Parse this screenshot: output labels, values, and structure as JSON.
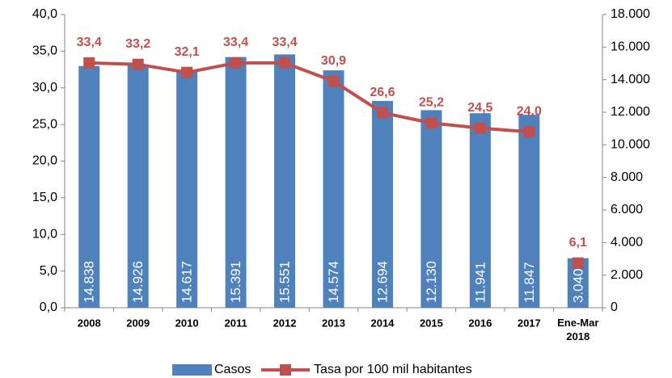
{
  "chart_data": {
    "type": "bar",
    "categories": [
      "2008",
      "2009",
      "2010",
      "2011",
      "2012",
      "2013",
      "2014",
      "2015",
      "2016",
      "2017",
      "Ene-Mar 2018"
    ],
    "series": [
      {
        "name": "Casos",
        "type": "bar",
        "axis": "y2",
        "color": "#4f81bd",
        "values": [
          14838,
          14926,
          14617,
          15391,
          15551,
          14574,
          12694,
          12130,
          11941,
          11847,
          3040
        ],
        "value_labels": [
          "14.838",
          "14.926",
          "14.617",
          "15.391",
          "15.551",
          "14.574",
          "12.694",
          "12.130",
          "11.941",
          "11.847",
          "3.040"
        ]
      },
      {
        "name": "Tasa por 100 mil habitantes",
        "type": "line",
        "axis": "y",
        "color": "#c0504d",
        "values": [
          33.4,
          33.2,
          32.1,
          33.4,
          33.4,
          30.9,
          26.6,
          25.2,
          24.5,
          24.0,
          6.1
        ],
        "value_labels": [
          "33,4",
          "33,2",
          "32,1",
          "33,4",
          "33,4",
          "30,9",
          "26,6",
          "25,2",
          "24,5",
          "24,0",
          "6,1"
        ]
      }
    ],
    "ylim": [
      0,
      40
    ],
    "yticks": [
      {
        "value": 0,
        "label": "0,0"
      },
      {
        "value": 5,
        "label": "5,0"
      },
      {
        "value": 10,
        "label": "10,0"
      },
      {
        "value": 15,
        "label": "15,0"
      },
      {
        "value": 20,
        "label": "20,0"
      },
      {
        "value": 25,
        "label": "25,0"
      },
      {
        "value": 30,
        "label": "30,0"
      },
      {
        "value": 35,
        "label": "35,0"
      },
      {
        "value": 40,
        "label": "40,0"
      }
    ],
    "y2lim": [
      0,
      18000
    ],
    "y2ticks": [
      0,
      {
        "value": 2000,
        "label": "2.000"
      },
      {
        "value": 4000,
        "label": "4.000"
      },
      {
        "value": 6000,
        "label": "6.000"
      },
      {
        "value": 8000,
        "label": "8.000"
      },
      {
        "value": 10000,
        "label": "10.000"
      },
      {
        "value": 12000,
        "label": "12.000"
      },
      {
        "value": 14000,
        "label": "14.000"
      },
      {
        "value": 16000,
        "label": "16.000"
      },
      {
        "value": 18000,
        "label": "18.000"
      }
    ],
    "legend": "bottom"
  }
}
